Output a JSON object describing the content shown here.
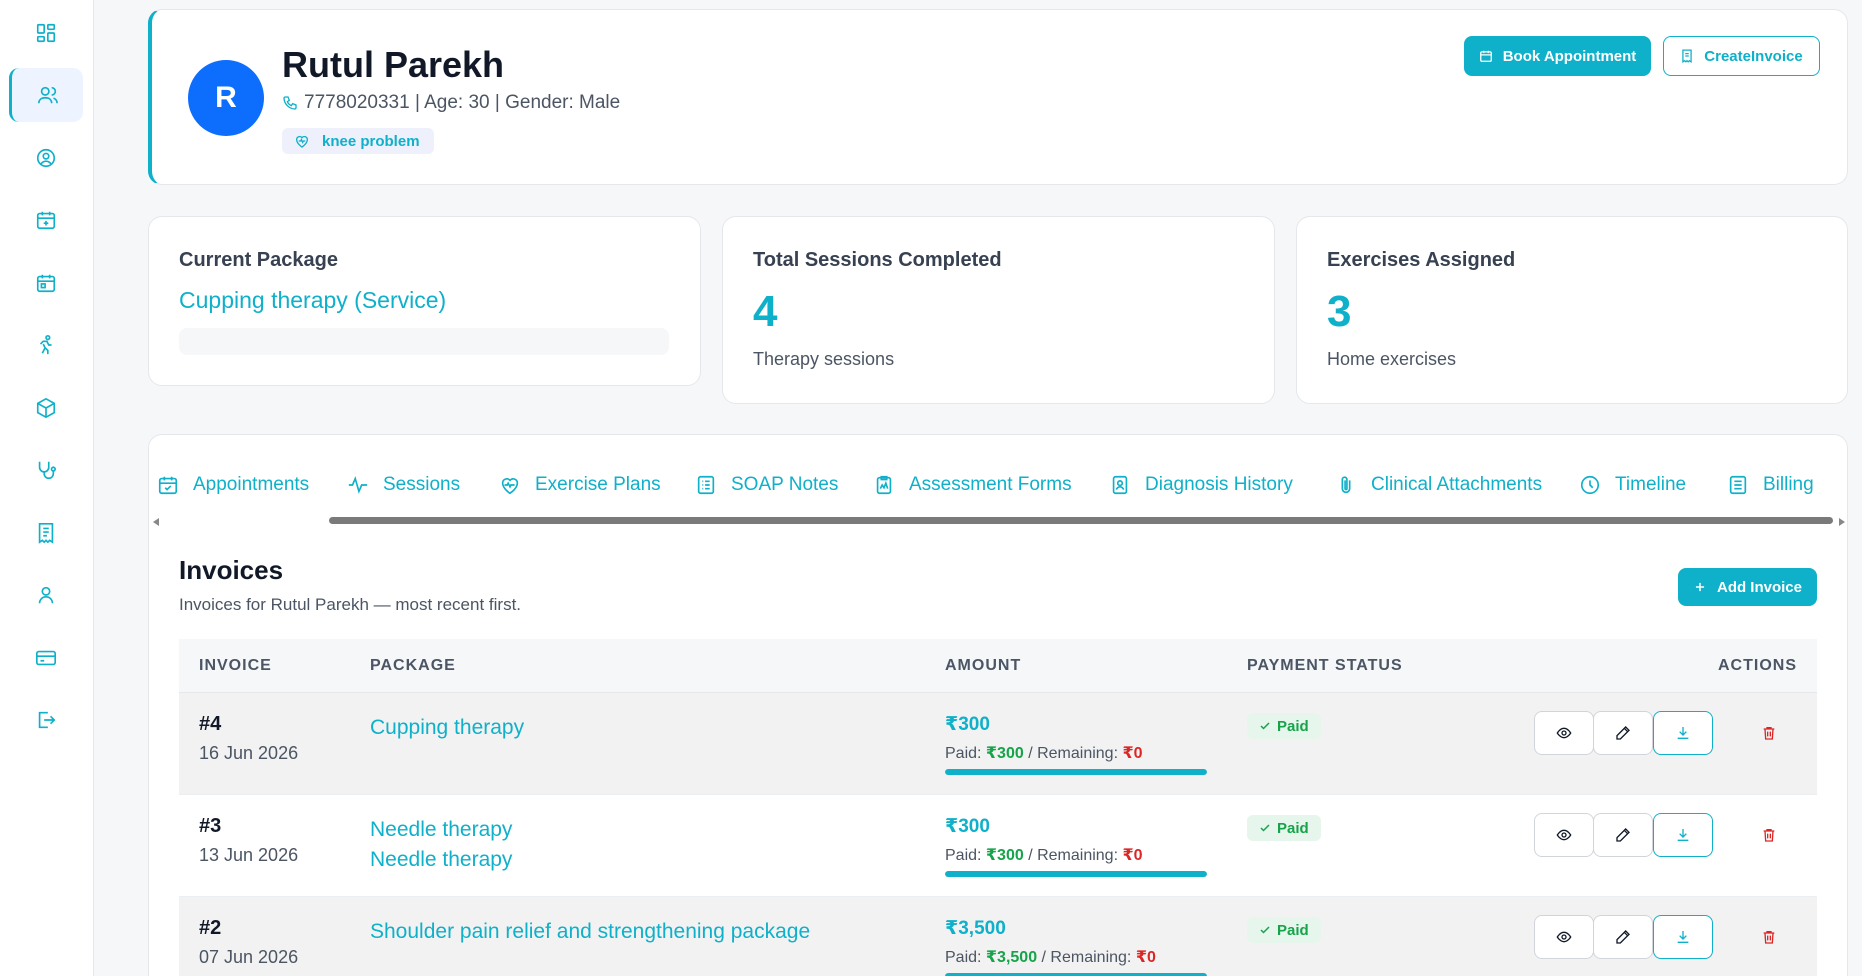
{
  "sidebar": {
    "items": [
      {
        "icon": "dashboard-icon"
      },
      {
        "icon": "patients-icon",
        "active": true
      },
      {
        "icon": "user-circle-icon"
      },
      {
        "icon": "calendar-plus-icon"
      },
      {
        "icon": "calendar-icon"
      },
      {
        "icon": "running-icon"
      },
      {
        "icon": "package-icon"
      },
      {
        "icon": "stethoscope-icon"
      },
      {
        "icon": "receipt-icon"
      },
      {
        "icon": "user-icon"
      },
      {
        "icon": "credit-card-icon"
      },
      {
        "icon": "logout-icon"
      }
    ]
  },
  "header": {
    "avatar_initial": "R",
    "name": "Rutul Parekh",
    "meta": "7778020331 | Age: 30 | Gender: Male",
    "condition_tag": "knee problem",
    "book_label": "Book Appointment",
    "invoice_label": "CreateInvoice"
  },
  "stats": {
    "package": {
      "label": "Current Package",
      "value": "Cupping therapy (Service)"
    },
    "sessions": {
      "label": "Total Sessions Completed",
      "value": "4",
      "sub": "Therapy sessions"
    },
    "exercises": {
      "label": "Exercises Assigned",
      "value": "3",
      "sub": "Home exercises"
    }
  },
  "tabs": [
    {
      "label": "Appointments",
      "icon": "calendar-check-icon"
    },
    {
      "label": "Sessions",
      "icon": "activity-icon"
    },
    {
      "label": "Exercise Plans",
      "icon": "heart-pulse-icon"
    },
    {
      "label": "SOAP Notes",
      "icon": "notes-icon"
    },
    {
      "label": "Assessment Forms",
      "icon": "clipboard-chart-icon"
    },
    {
      "label": "Diagnosis History",
      "icon": "id-card-icon"
    },
    {
      "label": "Clinical Attachments",
      "icon": "paperclip-icon"
    },
    {
      "label": "Timeline",
      "icon": "clock-icon"
    },
    {
      "label": "Billing",
      "icon": "billing-icon"
    }
  ],
  "invoices": {
    "title": "Invoices",
    "subtitle": "Invoices for Rutul Parekh — most recent first.",
    "add_label": "Add Invoice",
    "columns": {
      "invoice": "INVOICE",
      "package": "PACKAGE",
      "amount": "AMOUNT",
      "status": "PAYMENT STATUS",
      "actions": "ACTIONS"
    },
    "rows": [
      {
        "number": "#4",
        "date": "16 Jun 2026",
        "packages": [
          "Cupping therapy"
        ],
        "amount": "₹300",
        "paid_label": "Paid: ",
        "paid": "₹300",
        "remaining_label": " / Remaining: ",
        "remaining": "₹0",
        "paid_fraction": 1.0,
        "status": "Paid"
      },
      {
        "number": "#3",
        "date": "13 Jun 2026",
        "packages": [
          "Needle therapy",
          "Needle therapy"
        ],
        "amount": "₹300",
        "paid_label": "Paid: ",
        "paid": "₹300",
        "remaining_label": " / Remaining: ",
        "remaining": "₹0",
        "paid_fraction": 1.0,
        "status": "Paid"
      },
      {
        "number": "#2",
        "date": "07 Jun 2026",
        "packages": [
          "Shoulder pain relief and strengthening package"
        ],
        "amount": "₹3,500",
        "paid_label": "Paid: ",
        "paid": "₹3,500",
        "remaining_label": " / Remaining: ",
        "remaining": "₹0",
        "paid_fraction": 1.0,
        "status": "Paid"
      }
    ]
  },
  "colors": {
    "accent": "#0fb0c9",
    "avatar": "#0d6efd",
    "paid": "#16a34a",
    "danger": "#dc2626"
  }
}
